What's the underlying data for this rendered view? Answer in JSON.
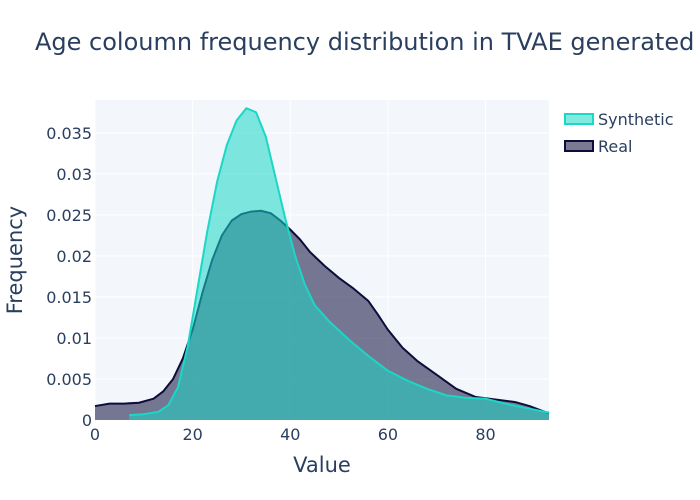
{
  "chart_data": {
    "type": "area",
    "title": "Age coloumn frequency distribution in TVAE generated",
    "xlabel": "Value",
    "ylabel": "Frequency",
    "xlim": [
      0,
      93
    ],
    "ylim": [
      0,
      0.039
    ],
    "x_ticks": [
      0,
      20,
      40,
      60,
      80
    ],
    "x_tick_labels": [
      "0",
      "20",
      "40",
      "60",
      "80"
    ],
    "y_ticks": [
      0,
      0.005,
      0.01,
      0.015,
      0.02,
      0.025,
      0.03,
      0.035
    ],
    "y_tick_labels": [
      "0",
      "0.005",
      "0.01",
      "0.015",
      "0.02",
      "0.025",
      "0.03",
      "0.035"
    ],
    "grid": true,
    "legend_position": "top-right",
    "series": [
      {
        "name": "Synthetic",
        "color": "#1ad7c6",
        "fill": "rgba(26,215,198,0.55)",
        "points": [
          [
            7,
            0.0006
          ],
          [
            10,
            0.0007
          ],
          [
            13,
            0.001
          ],
          [
            15,
            0.0018
          ],
          [
            17,
            0.004
          ],
          [
            19,
            0.009
          ],
          [
            21,
            0.016
          ],
          [
            23,
            0.023
          ],
          [
            25,
            0.029
          ],
          [
            27,
            0.0335
          ],
          [
            29,
            0.0365
          ],
          [
            31,
            0.038
          ],
          [
            33,
            0.0375
          ],
          [
            35,
            0.0345
          ],
          [
            37,
            0.0295
          ],
          [
            39,
            0.0245
          ],
          [
            41,
            0.02
          ],
          [
            43,
            0.0165
          ],
          [
            45,
            0.014
          ],
          [
            48,
            0.012
          ],
          [
            52,
            0.0098
          ],
          [
            56,
            0.0078
          ],
          [
            60,
            0.006
          ],
          [
            64,
            0.0048
          ],
          [
            68,
            0.0038
          ],
          [
            72,
            0.003
          ],
          [
            76,
            0.0027
          ],
          [
            80,
            0.0026
          ],
          [
            84,
            0.002
          ],
          [
            88,
            0.0015
          ],
          [
            93,
            0.0009
          ]
        ]
      },
      {
        "name": "Real",
        "color": "#0d0c3b",
        "fill": "rgba(13,12,59,0.55)",
        "points": [
          [
            0,
            0.0017
          ],
          [
            3,
            0.002
          ],
          [
            6,
            0.002
          ],
          [
            9,
            0.0021
          ],
          [
            12,
            0.0026
          ],
          [
            14,
            0.0035
          ],
          [
            16,
            0.005
          ],
          [
            18,
            0.0075
          ],
          [
            20,
            0.011
          ],
          [
            22,
            0.0155
          ],
          [
            24,
            0.0195
          ],
          [
            26,
            0.0225
          ],
          [
            28,
            0.0243
          ],
          [
            30,
            0.0251
          ],
          [
            32,
            0.0254
          ],
          [
            34,
            0.0255
          ],
          [
            36,
            0.0252
          ],
          [
            38,
            0.0243
          ],
          [
            40,
            0.0232
          ],
          [
            42,
            0.022
          ],
          [
            44,
            0.0205
          ],
          [
            47,
            0.0188
          ],
          [
            50,
            0.0173
          ],
          [
            53,
            0.016
          ],
          [
            56,
            0.0145
          ],
          [
            58,
            0.0128
          ],
          [
            60,
            0.011
          ],
          [
            63,
            0.0088
          ],
          [
            66,
            0.0072
          ],
          [
            70,
            0.0055
          ],
          [
            74,
            0.0038
          ],
          [
            78,
            0.0028
          ],
          [
            82,
            0.0025
          ],
          [
            86,
            0.0022
          ],
          [
            89,
            0.0017
          ],
          [
            93,
            0.0008
          ]
        ]
      }
    ]
  }
}
